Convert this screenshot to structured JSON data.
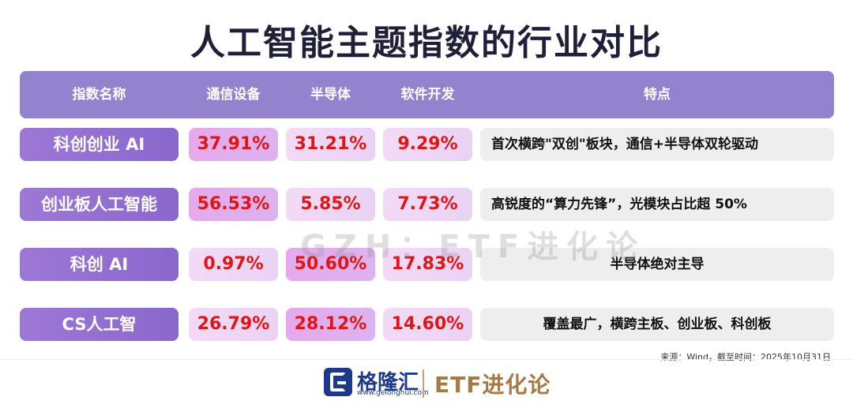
{
  "title": "人工智能主题指数的行业对比",
  "chart_data": {
    "type": "table",
    "columns": [
      "指数名称",
      "通信设备",
      "半导体",
      "软件开发",
      "特点"
    ],
    "rows": [
      {
        "name": "科创创业 AI",
        "values": [
          "37.91%",
          "31.21%",
          "9.29%"
        ],
        "feature": "首次横跨\"双创\"板块，通信+半导体双轮驱动"
      },
      {
        "name": "创业板人工智能",
        "values": [
          "56.53%",
          "5.85%",
          "7.73%"
        ],
        "feature": "高锐度的“算力先锋”，光模块占比超 50%"
      },
      {
        "name": "科创 AI",
        "values": [
          "0.97%",
          "50.60%",
          "17.83%"
        ],
        "feature": "半导体绝对主导"
      },
      {
        "name": "CS人工智",
        "values": [
          "26.79%",
          "28.12%",
          "14.60%"
        ],
        "feature": "覆盖最广，横跨主板、创业板、科创板"
      }
    ]
  },
  "highlight_color": "#e6a9ec",
  "watermark": "GZH：ETF进化论",
  "source": "来源：Wind，截至时间：2025年10月31日",
  "footer": {
    "logo_text": "格隆汇",
    "logo_url": "www.gelonghui.com",
    "brand": "ETF进化论"
  }
}
